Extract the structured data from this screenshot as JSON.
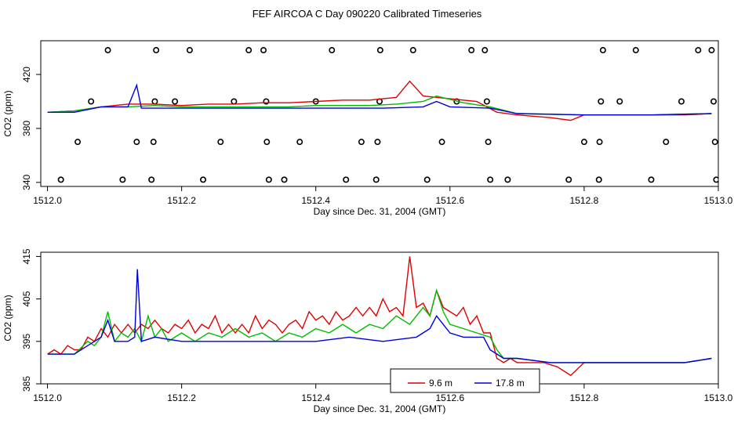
{
  "page_title": "FEF AIRCOA C  Day 090220  Calibrated Timeseries",
  "chart_data": [
    {
      "type": "scatter",
      "xlabel": "Day since Dec. 31, 2004 (GMT)",
      "ylabel": "CO2 (ppm)",
      "xlim": [
        1511.99,
        1513.0
      ],
      "ylim": [
        337,
        445
      ],
      "xticks": [
        "1512.0",
        "1512.2",
        "1512.4",
        "1512.6",
        "1512.8",
        "1513.0"
      ],
      "xtick_values": [
        1512.0,
        1512.2,
        1512.4,
        1512.6,
        1512.8,
        1513.0
      ],
      "yticks": [
        "340",
        "380",
        "420"
      ],
      "ytick_values": [
        340,
        380,
        420
      ],
      "circles": [
        [
          1512.02,
          342
        ],
        [
          1512.045,
          370
        ],
        [
          1512.065,
          400
        ],
        [
          1512.09,
          438
        ],
        [
          1512.112,
          342
        ],
        [
          1512.133,
          370
        ],
        [
          1512.155,
          342
        ],
        [
          1512.158,
          370
        ],
        [
          1512.16,
          400
        ],
        [
          1512.162,
          438
        ],
        [
          1512.19,
          400
        ],
        [
          1512.212,
          438
        ],
        [
          1512.232,
          342
        ],
        [
          1512.258,
          370
        ],
        [
          1512.278,
          400
        ],
        [
          1512.3,
          438
        ],
        [
          1512.322,
          438
        ],
        [
          1512.326,
          400
        ],
        [
          1512.327,
          370
        ],
        [
          1512.33,
          342
        ],
        [
          1512.353,
          342
        ],
        [
          1512.376,
          370
        ],
        [
          1512.4,
          400
        ],
        [
          1512.424,
          438
        ],
        [
          1512.445,
          342
        ],
        [
          1512.468,
          370
        ],
        [
          1512.49,
          342
        ],
        [
          1512.492,
          370
        ],
        [
          1512.495,
          400
        ],
        [
          1512.496,
          438
        ],
        [
          1512.545,
          438
        ],
        [
          1512.566,
          342
        ],
        [
          1512.588,
          370
        ],
        [
          1512.61,
          400
        ],
        [
          1512.632,
          438
        ],
        [
          1512.652,
          438
        ],
        [
          1512.655,
          400
        ],
        [
          1512.657,
          370
        ],
        [
          1512.66,
          342
        ],
        [
          1512.686,
          342
        ],
        [
          1512.777,
          342
        ],
        [
          1512.8,
          370
        ],
        [
          1512.822,
          342
        ],
        [
          1512.823,
          370
        ],
        [
          1512.825,
          400
        ],
        [
          1512.828,
          438
        ],
        [
          1512.853,
          400
        ],
        [
          1512.877,
          438
        ],
        [
          1512.9,
          342
        ],
        [
          1512.922,
          370
        ],
        [
          1512.945,
          400
        ],
        [
          1512.97,
          438
        ],
        [
          1512.99,
          438
        ],
        [
          1512.993,
          400
        ],
        [
          1512.995,
          370
        ],
        [
          1512.997,
          342
        ]
      ],
      "series": [
        {
          "color": "#e00000",
          "x": [
            1512.0,
            1512.04,
            1512.08,
            1512.12,
            1512.16,
            1512.2,
            1512.24,
            1512.28,
            1512.32,
            1512.36,
            1512.4,
            1512.44,
            1512.48,
            1512.52,
            1512.54,
            1512.56,
            1512.6,
            1512.64,
            1512.67,
            1512.7,
            1512.75,
            1512.78,
            1512.8,
            1512.85,
            1512.9,
            1512.95,
            1512.99
          ],
          "y": [
            392,
            393,
            396,
            398,
            398,
            397,
            398,
            398,
            399,
            399,
            400,
            401,
            401,
            403,
            415,
            404,
            402,
            400,
            392,
            390,
            388,
            386,
            390,
            390,
            390,
            390,
            391
          ]
        },
        {
          "color": "#00bb00",
          "x": [
            1512.0,
            1512.04,
            1512.08,
            1512.12,
            1512.16,
            1512.2,
            1512.24,
            1512.28,
            1512.32,
            1512.36,
            1512.4,
            1512.44,
            1512.48,
            1512.52,
            1512.56,
            1512.58,
            1512.62,
            1512.66,
            1512.7,
            1512.8,
            1512.9,
            1512.99
          ],
          "y": [
            392,
            393,
            396,
            396,
            397,
            396,
            396,
            396,
            396,
            396,
            397,
            397,
            397,
            398,
            400,
            404,
            399,
            396,
            391,
            390,
            390,
            391
          ]
        },
        {
          "color": "#0000dd",
          "x": [
            1512.0,
            1512.04,
            1512.08,
            1512.1,
            1512.12,
            1512.133,
            1512.14,
            1512.2,
            1512.3,
            1512.4,
            1512.5,
            1512.56,
            1512.58,
            1512.6,
            1512.66,
            1512.7,
            1512.8,
            1512.9,
            1512.99
          ],
          "y": [
            392,
            392,
            396,
            396,
            396,
            412,
            395,
            395,
            395,
            395,
            395,
            396,
            400,
            396,
            395,
            391,
            390,
            390,
            391
          ]
        }
      ]
    },
    {
      "type": "line",
      "xlabel": "Day since Dec. 31, 2004 (GMT)",
      "ylabel": "CO2 (ppm)",
      "xlim": [
        1511.99,
        1513.0
      ],
      "ylim": [
        385,
        416
      ],
      "xticks": [
        "1512.0",
        "1512.2",
        "1512.4",
        "1512.6",
        "1512.8",
        "1513.0"
      ],
      "xtick_values": [
        1512.0,
        1512.2,
        1512.4,
        1512.6,
        1512.8,
        1513.0
      ],
      "yticks": [
        "385",
        "395",
        "405",
        "415"
      ],
      "ytick_values": [
        385,
        395,
        405,
        415
      ],
      "legend": {
        "placement": "bottom-center",
        "labels": [
          "9.6 m",
          "17.8 m"
        ]
      },
      "series": [
        {
          "color": "#e00000",
          "x": [
            1512.0,
            1512.01,
            1512.02,
            1512.03,
            1512.04,
            1512.05,
            1512.06,
            1512.07,
            1512.08,
            1512.09,
            1512.1,
            1512.11,
            1512.12,
            1512.13,
            1512.14,
            1512.15,
            1512.16,
            1512.17,
            1512.18,
            1512.19,
            1512.2,
            1512.21,
            1512.22,
            1512.23,
            1512.24,
            1512.25,
            1512.26,
            1512.27,
            1512.28,
            1512.29,
            1512.3,
            1512.31,
            1512.32,
            1512.33,
            1512.34,
            1512.35,
            1512.36,
            1512.37,
            1512.38,
            1512.39,
            1512.4,
            1512.41,
            1512.42,
            1512.43,
            1512.44,
            1512.45,
            1512.46,
            1512.47,
            1512.48,
            1512.49,
            1512.5,
            1512.51,
            1512.52,
            1512.53,
            1512.54,
            1512.55,
            1512.56,
            1512.57,
            1512.58,
            1512.59,
            1512.6,
            1512.61,
            1512.62,
            1512.63,
            1512.64,
            1512.65,
            1512.66,
            1512.67,
            1512.68,
            1512.69,
            1512.7,
            1512.72,
            1512.74,
            1512.76,
            1512.78,
            1512.8,
            1512.85,
            1512.9,
            1512.95,
            1512.99
          ],
          "y": [
            392,
            393,
            392,
            394,
            393,
            393,
            396,
            395,
            398,
            396,
            399,
            397,
            399,
            397,
            399,
            398,
            400,
            398,
            397,
            399,
            398,
            400,
            397,
            399,
            398,
            401,
            397,
            399,
            397,
            399,
            397,
            401,
            398,
            400,
            399,
            397,
            399,
            400,
            398,
            402,
            400,
            401,
            399,
            402,
            400,
            401,
            403,
            401,
            403,
            401,
            405,
            402,
            403,
            401,
            415,
            403,
            404,
            401,
            407,
            403,
            402,
            401,
            403,
            399,
            401,
            397,
            397,
            391,
            390,
            391,
            390,
            390,
            390,
            389,
            387,
            390,
            390,
            390,
            390,
            391
          ]
        },
        {
          "color": "#00bb00",
          "x": [
            1512.0,
            1512.02,
            1512.04,
            1512.06,
            1512.07,
            1512.08,
            1512.09,
            1512.1,
            1512.11,
            1512.12,
            1512.13,
            1512.14,
            1512.15,
            1512.16,
            1512.17,
            1512.18,
            1512.2,
            1512.22,
            1512.24,
            1512.26,
            1512.28,
            1512.3,
            1512.32,
            1512.34,
            1512.36,
            1512.38,
            1512.4,
            1512.42,
            1512.44,
            1512.46,
            1512.48,
            1512.5,
            1512.52,
            1512.54,
            1512.56,
            1512.57,
            1512.58,
            1512.59,
            1512.6,
            1512.62,
            1512.64,
            1512.66,
            1512.67,
            1512.68,
            1512.7,
            1512.75,
            1512.8,
            1512.85,
            1512.9,
            1512.95,
            1512.99
          ],
          "y": [
            392,
            392,
            392,
            395,
            394,
            396,
            402,
            395,
            397,
            396,
            398,
            395,
            401,
            396,
            398,
            395,
            397,
            395,
            397,
            396,
            398,
            396,
            397,
            395,
            397,
            396,
            398,
            397,
            399,
            397,
            399,
            398,
            401,
            399,
            403,
            401,
            407,
            402,
            399,
            398,
            397,
            396,
            393,
            391,
            391,
            390,
            390,
            390,
            390,
            390,
            391
          ]
        },
        {
          "color": "#0000dd",
          "x": [
            1512.0,
            1512.02,
            1512.04,
            1512.06,
            1512.08,
            1512.09,
            1512.1,
            1512.12,
            1512.13,
            1512.134,
            1512.14,
            1512.16,
            1512.2,
            1512.25,
            1512.3,
            1512.35,
            1512.4,
            1512.45,
            1512.5,
            1512.55,
            1512.57,
            1512.58,
            1512.6,
            1512.62,
            1512.65,
            1512.66,
            1512.68,
            1512.7,
            1512.75,
            1512.8,
            1512.85,
            1512.9,
            1512.95,
            1512.99
          ],
          "y": [
            392,
            392,
            392,
            394,
            396,
            400,
            395,
            395,
            396,
            412,
            395,
            396,
            395,
            395,
            395,
            395,
            395,
            396,
            395,
            396,
            398,
            401,
            397,
            396,
            396,
            393,
            391,
            391,
            390,
            390,
            390,
            390,
            390,
            391
          ]
        }
      ]
    }
  ]
}
